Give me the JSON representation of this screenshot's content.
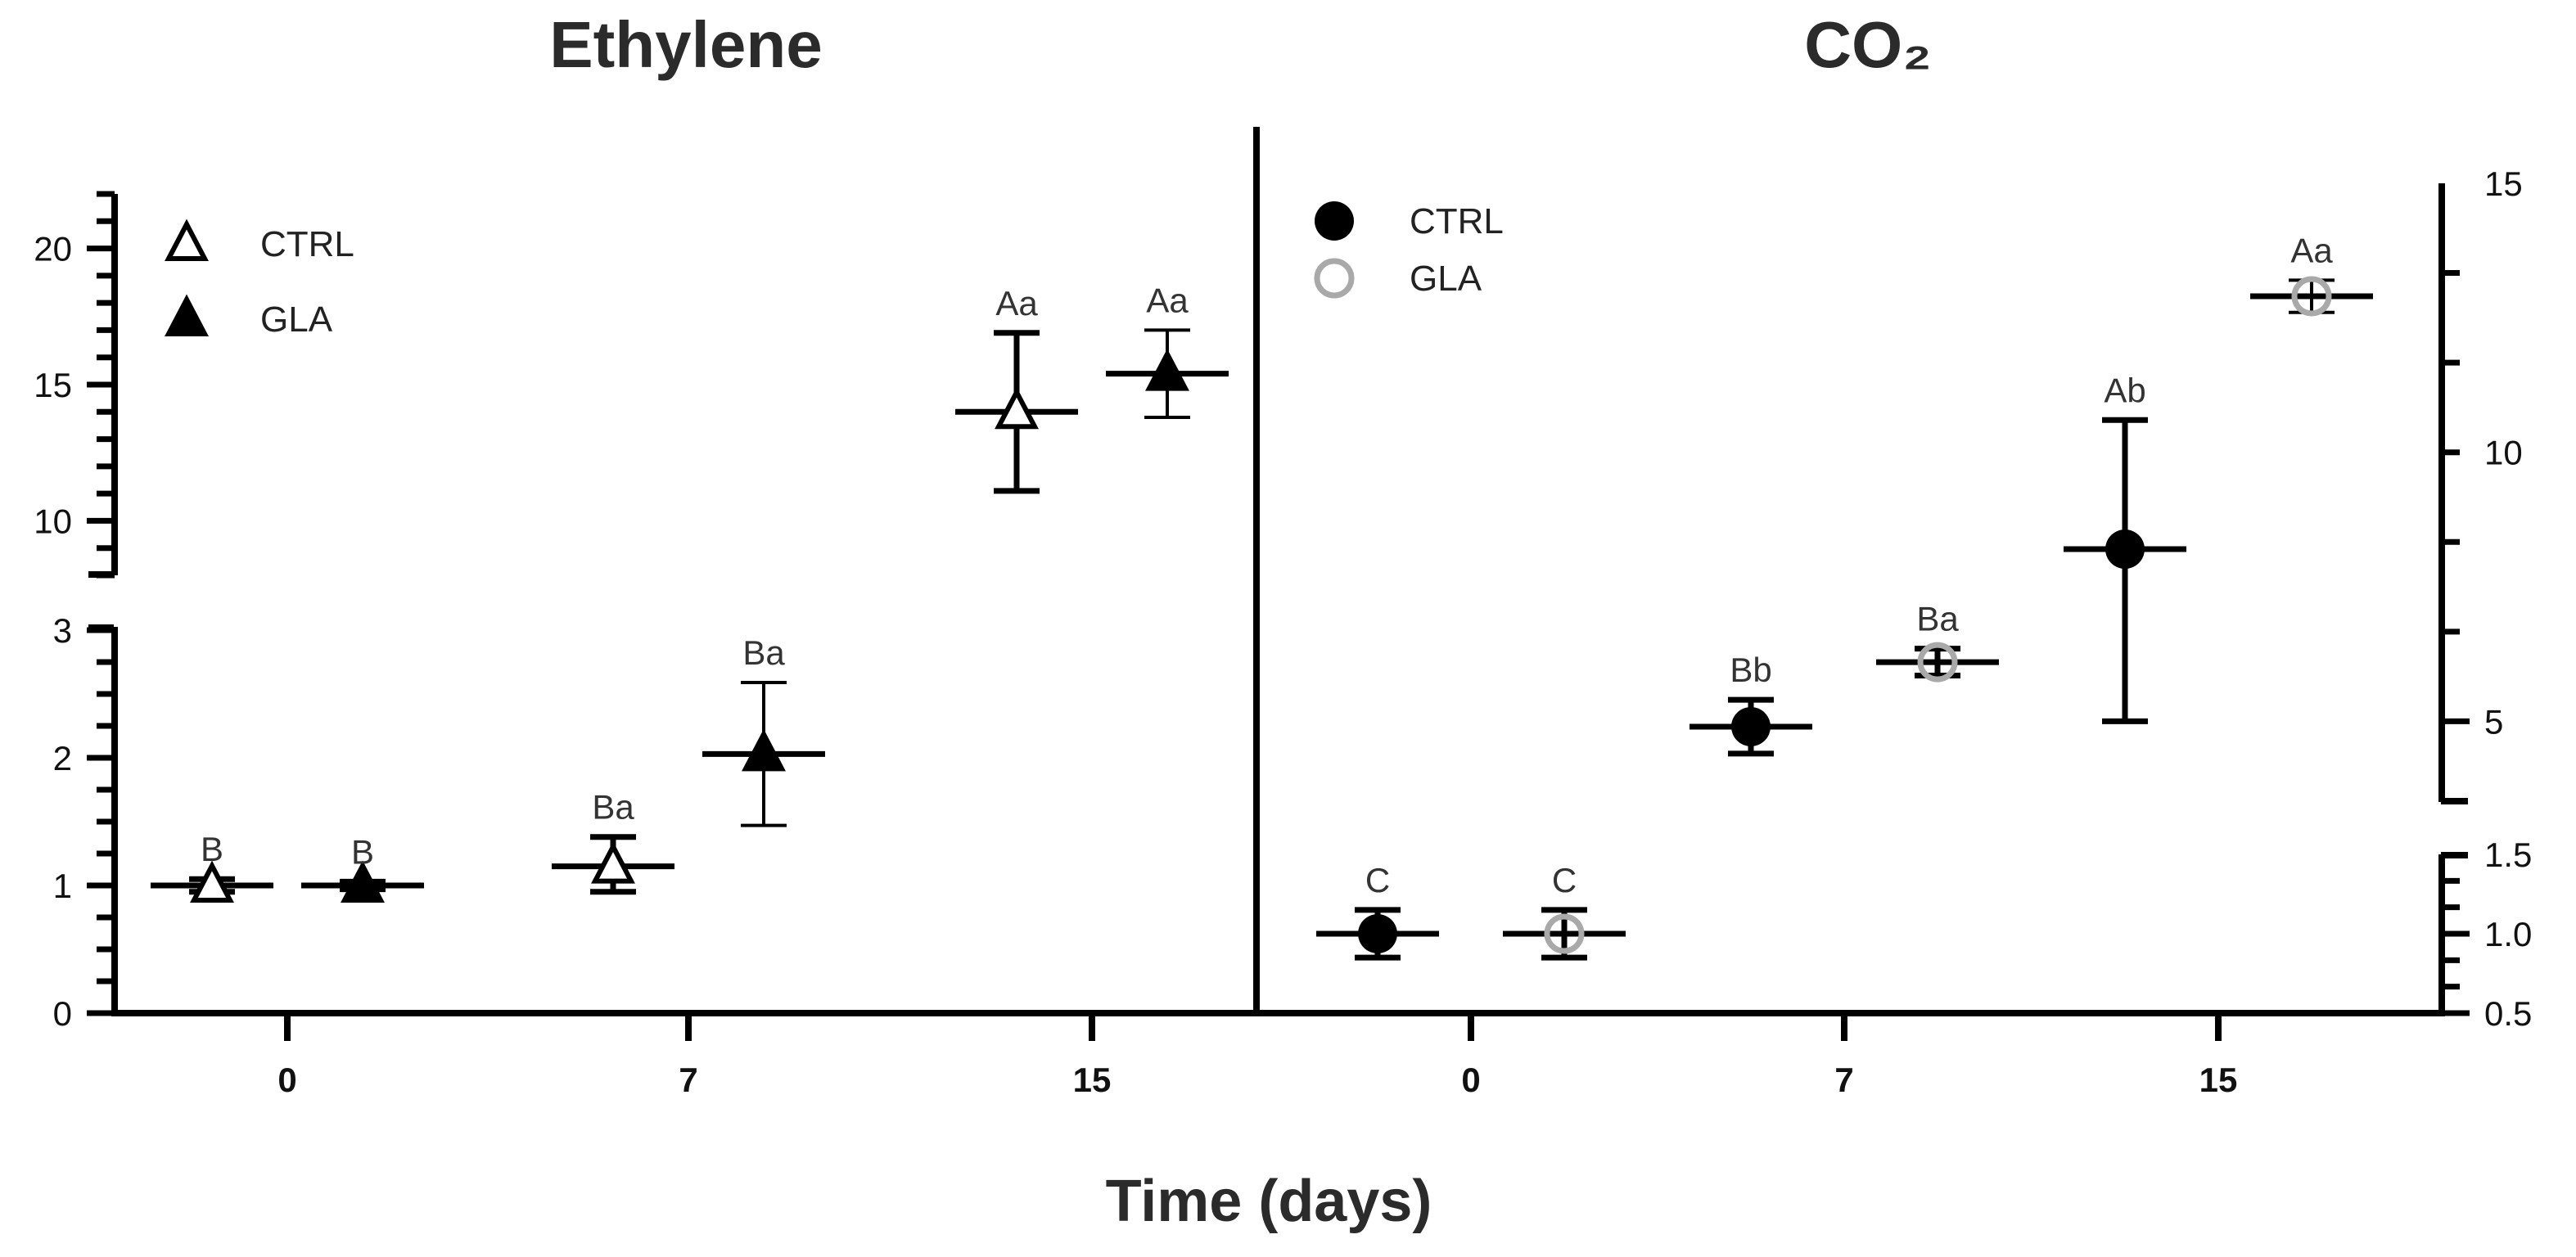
{
  "xlabel": "Time (days)",
  "chart_data": [
    {
      "id": "ethylene",
      "type": "scatter",
      "title": "Ethylene",
      "xlabel": "Time (days)",
      "ylabel": "",
      "categories": [
        "0",
        "7",
        "15"
      ],
      "yaxis_segments": [
        {
          "range": [
            0,
            3
          ],
          "tick_labels": [
            "0",
            "1",
            "2",
            "3"
          ]
        },
        {
          "range": [
            8,
            22
          ],
          "tick_labels": [
            "10",
            "15",
            "20"
          ]
        }
      ],
      "legend": [
        {
          "name": "CTRL",
          "marker": "open-triangle"
        },
        {
          "name": "GLA",
          "marker": "filled-triangle"
        }
      ],
      "legend_position": "top-left",
      "series": [
        {
          "name": "CTRL",
          "color": "#000000",
          "points": [
            {
              "x": "0",
              "y": 1.0,
              "err_low": 0.95,
              "err_high": 1.05,
              "label": "B"
            },
            {
              "x": "7",
              "y": 1.15,
              "err_low": 0.95,
              "err_high": 1.38,
              "label": "Ba"
            },
            {
              "x": "15",
              "y": 14.0,
              "err_low": 11.1,
              "err_high": 16.9,
              "label": "Aa"
            }
          ]
        },
        {
          "name": "GLA",
          "color": "#000000",
          "points": [
            {
              "x": "0",
              "y": 1.0,
              "err_low": 0.97,
              "err_high": 1.03,
              "label": "B"
            },
            {
              "x": "7",
              "y": 2.03,
              "err_low": 1.47,
              "err_high": 2.59,
              "label": "Ba"
            },
            {
              "x": "15",
              "y": 15.4,
              "err_low": 13.8,
              "err_high": 17.0,
              "label": "Aa"
            }
          ]
        }
      ]
    },
    {
      "id": "co2",
      "type": "scatter",
      "title": "CO₂",
      "xlabel": "Time (days)",
      "ylabel": "",
      "categories": [
        "0",
        "7",
        "15"
      ],
      "yaxis_position": "right",
      "yaxis_segments": [
        {
          "range": [
            0.5,
            1.5
          ],
          "tick_labels": [
            "0.5",
            "1.0",
            "1.5"
          ]
        },
        {
          "range": [
            3.5,
            15
          ],
          "tick_labels": [
            "5",
            "10",
            "15"
          ]
        }
      ],
      "legend": [
        {
          "name": "CTRL",
          "marker": "filled-circle"
        },
        {
          "name": "GLA",
          "marker": "open-circle"
        }
      ],
      "legend_position": "top-left",
      "series": [
        {
          "name": "CTRL",
          "color": "#000000",
          "points": [
            {
              "x": "0",
              "y": 1.0,
              "err_low": 0.85,
              "err_high": 1.15,
              "label": "C"
            },
            {
              "x": "7",
              "y": 4.9,
              "err_low": 4.4,
              "err_high": 5.4,
              "label": "Bb"
            },
            {
              "x": "15",
              "y": 8.2,
              "err_low": 5.0,
              "err_high": 10.6,
              "label": "Ab"
            }
          ]
        },
        {
          "name": "GLA",
          "color": "#a9a9a9",
          "points": [
            {
              "x": "0",
              "y": 1.0,
              "err_low": 0.85,
              "err_high": 1.15,
              "label": "C"
            },
            {
              "x": "7",
              "y": 6.1,
              "err_low": 5.85,
              "err_high": 6.35,
              "label": "Ba"
            },
            {
              "x": "15",
              "y": 12.9,
              "err_low": 12.6,
              "err_high": 13.2,
              "label": "Aa"
            }
          ]
        }
      ]
    }
  ]
}
